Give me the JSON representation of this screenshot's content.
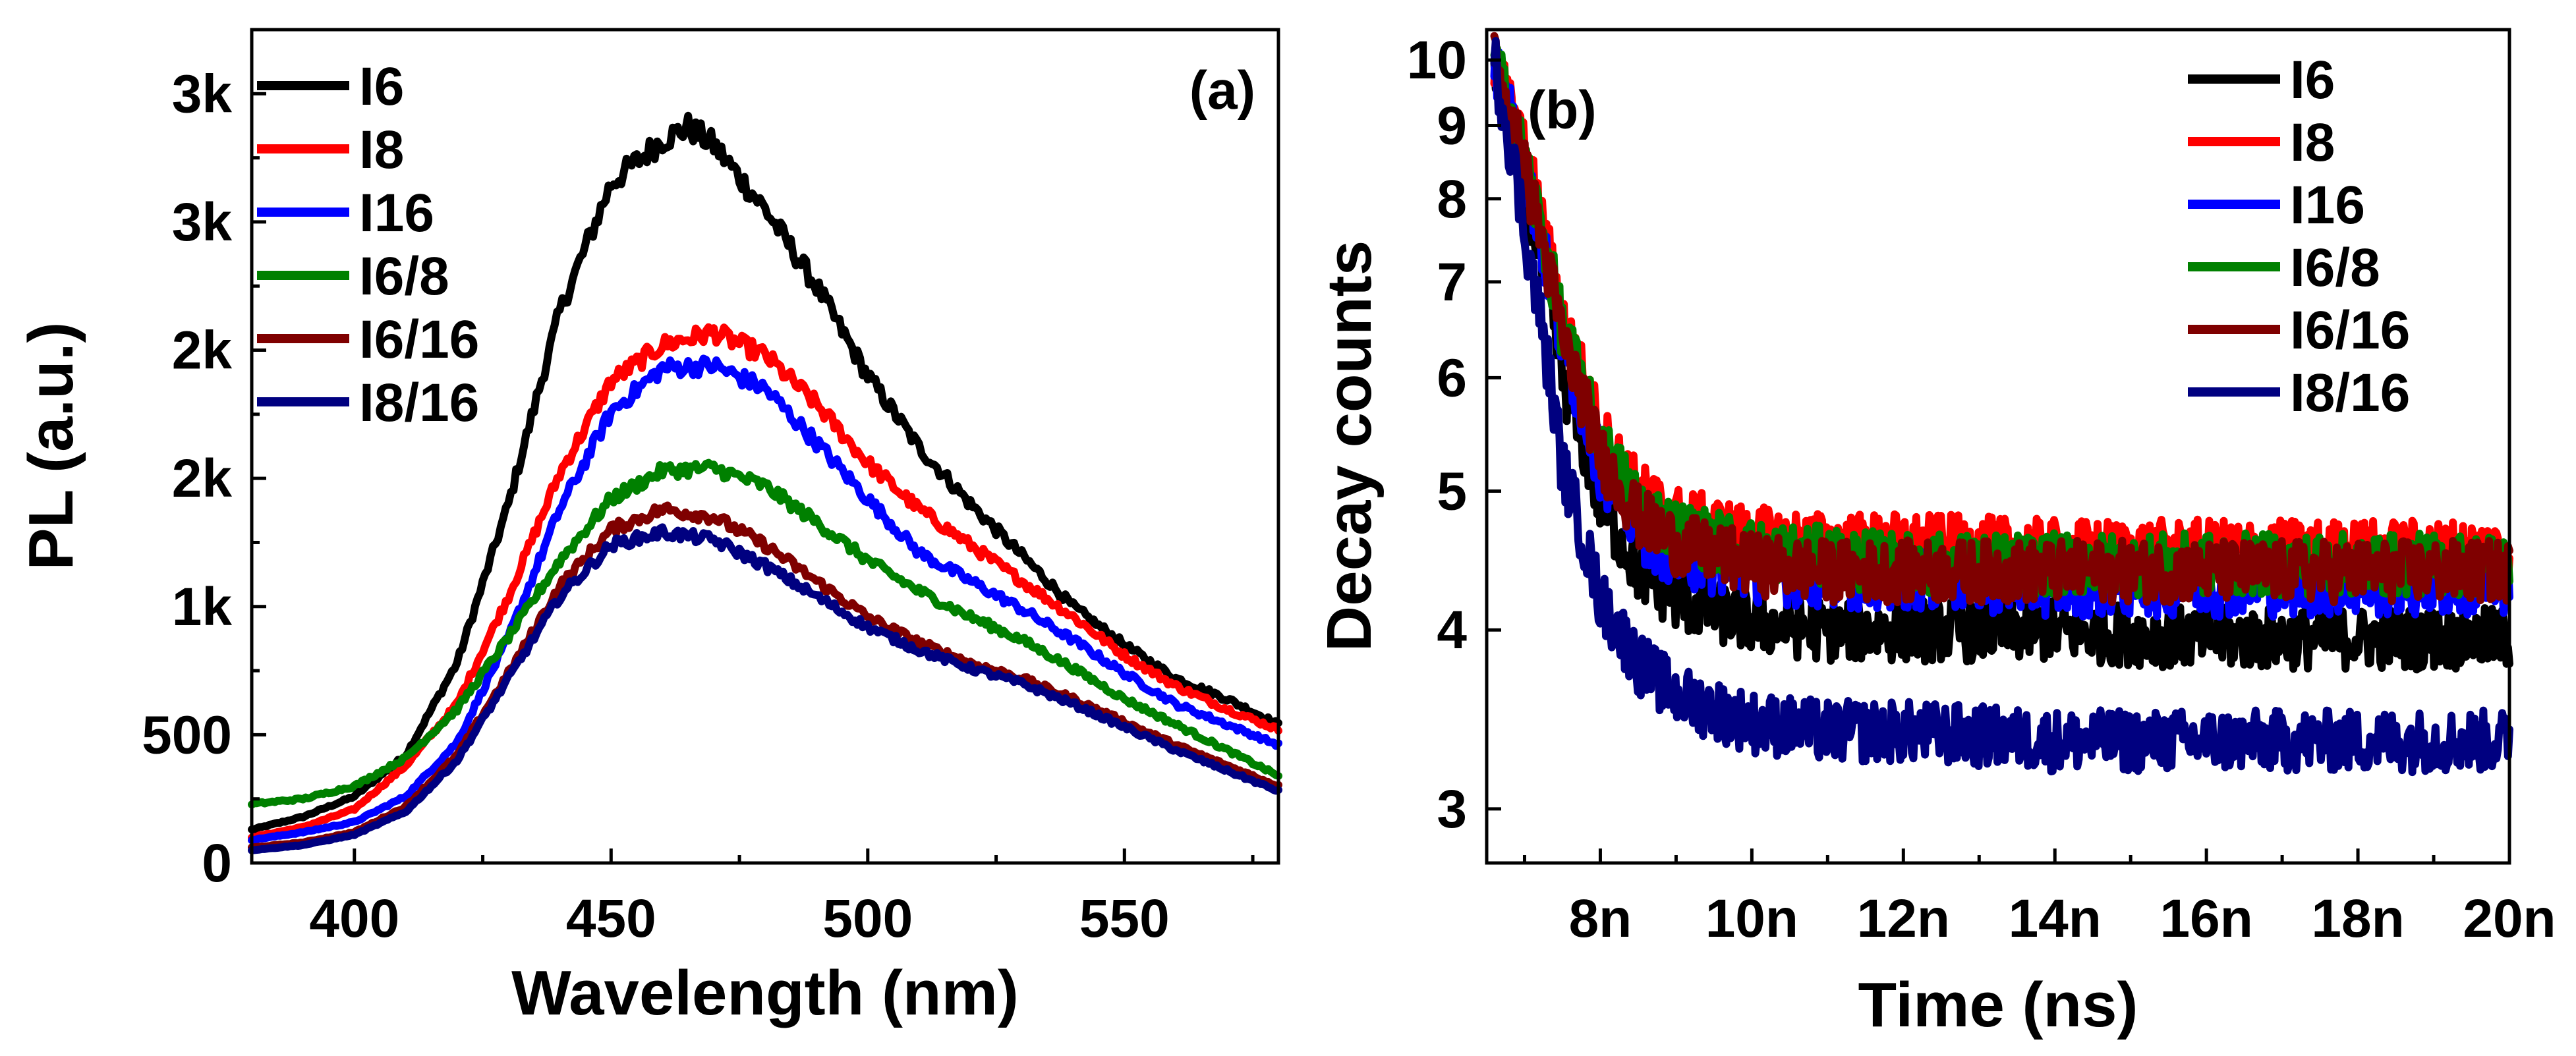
{
  "chart_data": [
    {
      "type": "line",
      "panel_label": "(a)",
      "xlabel": "Wavelength (nm)",
      "ylabel": "PL (a.u.)",
      "xlim": [
        380,
        580
      ],
      "ylim": [
        0,
        3250
      ],
      "x_ticks": [
        400,
        450,
        500,
        550
      ],
      "x_tick_labels": [
        "400",
        "450",
        "500",
        "550"
      ],
      "y_ticks": [
        0,
        500,
        1000,
        1500,
        2000,
        2500,
        3000
      ],
      "y_tick_labels": [
        "0",
        "500",
        "1k",
        "2k",
        "2k",
        "3k",
        "3k"
      ],
      "legend_position": "top-left",
      "series": [
        {
          "name": "I6",
          "color": "#000000",
          "x": [
            380,
            390,
            400,
            410,
            420,
            430,
            440,
            450,
            460,
            465,
            470,
            480,
            490,
            500,
            510,
            520,
            530,
            540,
            550,
            560,
            570,
            580
          ],
          "values": [
            130,
            180,
            260,
            420,
            780,
            1400,
            2150,
            2650,
            2820,
            2870,
            2800,
            2550,
            2250,
            1900,
            1620,
            1400,
            1200,
            1000,
            850,
            720,
            640,
            540
          ]
        },
        {
          "name": "I8",
          "color": "#ff0000",
          "x": [
            380,
            390,
            400,
            410,
            420,
            430,
            440,
            450,
            460,
            470,
            480,
            490,
            500,
            510,
            520,
            530,
            540,
            550,
            560,
            570,
            580
          ],
          "values": [
            100,
            140,
            210,
            380,
            620,
            1040,
            1520,
            1880,
            2020,
            2070,
            1980,
            1790,
            1560,
            1380,
            1240,
            1100,
            960,
            810,
            690,
            600,
            520
          ]
        },
        {
          "name": "I16",
          "color": "#0000ff",
          "x": [
            380,
            390,
            400,
            410,
            420,
            430,
            440,
            450,
            460,
            470,
            480,
            490,
            500,
            510,
            520,
            530,
            540,
            550,
            560,
            570,
            580
          ],
          "values": [
            90,
            120,
            160,
            260,
            470,
            880,
            1380,
            1760,
            1930,
            1940,
            1850,
            1640,
            1420,
            1210,
            1100,
            990,
            870,
            740,
            620,
            540,
            460
          ]
        },
        {
          "name": "I6/8",
          "color": "#008000",
          "x": [
            380,
            390,
            400,
            410,
            420,
            430,
            440,
            450,
            460,
            470,
            480,
            490,
            500,
            510,
            520,
            530,
            540,
            550,
            560,
            570,
            580
          ],
          "values": [
            230,
            250,
            300,
            410,
            600,
            880,
            1180,
            1420,
            1530,
            1540,
            1470,
            1330,
            1180,
            1060,
            960,
            870,
            760,
            640,
            540,
            440,
            340
          ]
        },
        {
          "name": "I6/16",
          "color": "#7f0000",
          "x": [
            380,
            390,
            400,
            410,
            420,
            430,
            440,
            450,
            460,
            470,
            480,
            490,
            500,
            510,
            520,
            530,
            540,
            550,
            560,
            570,
            580
          ],
          "values": [
            60,
            80,
            120,
            220,
            420,
            740,
            1080,
            1300,
            1380,
            1350,
            1240,
            1100,
            960,
            860,
            780,
            720,
            640,
            550,
            460,
            380,
            300
          ]
        },
        {
          "name": "I8/16",
          "color": "#000080",
          "x": [
            380,
            390,
            400,
            410,
            420,
            430,
            440,
            450,
            460,
            470,
            480,
            490,
            500,
            510,
            520,
            530,
            540,
            550,
            560,
            570,
            580
          ],
          "values": [
            50,
            70,
            110,
            200,
            400,
            720,
            1040,
            1240,
            1290,
            1260,
            1160,
            1040,
            920,
            830,
            760,
            700,
            620,
            530,
            440,
            360,
            280
          ]
        }
      ]
    },
    {
      "type": "line",
      "panel_label": "(b)",
      "xlabel": "Time (ns)",
      "ylabel": "Decay counts",
      "xlim": [
        6.5,
        20
      ],
      "ylim": [
        2.75,
        10.5
      ],
      "log_y": true,
      "x_ticks": [
        8,
        10,
        12,
        14,
        16,
        18,
        20
      ],
      "x_tick_labels": [
        "8n",
        "10n",
        "12n",
        "14n",
        "16n",
        "18n",
        "20n"
      ],
      "y_ticks": [
        3,
        4,
        5,
        6,
        7,
        8,
        9,
        10
      ],
      "y_tick_labels": [
        "3",
        "4",
        "5",
        "6",
        "7",
        "8",
        "9",
        "10"
      ],
      "legend_position": "top-right",
      "series": [
        {
          "name": "I6",
          "color": "#000000",
          "x": [
            6.6,
            7.0,
            7.5,
            8.0,
            8.5,
            9.0,
            10.0,
            11.0,
            12.0,
            14.0,
            16.0,
            18.0,
            20.0
          ],
          "values": [
            10,
            8.2,
            6.0,
            4.9,
            4.4,
            4.2,
            4.05,
            4.0,
            4.0,
            4.0,
            3.95,
            3.95,
            3.95
          ]
        },
        {
          "name": "I8",
          "color": "#ff0000",
          "x": [
            6.6,
            7.0,
            7.5,
            8.0,
            8.5,
            9.0,
            10.0,
            11.0,
            12.0,
            14.0,
            16.0,
            18.0,
            20.0
          ],
          "values": [
            10,
            8.6,
            6.6,
            5.5,
            5.0,
            4.8,
            4.65,
            4.6,
            4.6,
            4.55,
            4.55,
            4.55,
            4.55
          ]
        },
        {
          "name": "I16",
          "color": "#0000ff",
          "x": [
            6.6,
            7.0,
            7.5,
            8.0,
            8.5,
            9.0,
            10.0,
            11.0,
            12.0,
            14.0,
            16.0,
            18.0,
            20.0
          ],
          "values": [
            10,
            8.4,
            6.3,
            5.2,
            4.7,
            4.5,
            4.4,
            4.35,
            4.35,
            4.3,
            4.3,
            4.3,
            4.3
          ]
        },
        {
          "name": "I6/8",
          "color": "#008000",
          "x": [
            6.6,
            7.0,
            7.5,
            8.0,
            8.5,
            9.0,
            10.0,
            11.0,
            12.0,
            14.0,
            16.0,
            18.0,
            20.0
          ],
          "values": [
            10,
            8.5,
            6.5,
            5.4,
            4.9,
            4.7,
            4.55,
            4.5,
            4.45,
            4.45,
            4.45,
            4.45,
            4.45
          ]
        },
        {
          "name": "I6/16",
          "color": "#7f0000",
          "x": [
            6.6,
            7.0,
            7.5,
            8.0,
            8.5,
            9.0,
            10.0,
            11.0,
            12.0,
            14.0,
            16.0,
            18.0,
            20.0
          ],
          "values": [
            10,
            8.4,
            6.4,
            5.3,
            4.8,
            4.6,
            4.45,
            4.4,
            4.4,
            4.4,
            4.4,
            4.4,
            4.4
          ]
        },
        {
          "name": "I8/16",
          "color": "#000080",
          "x": [
            6.6,
            7.0,
            7.5,
            8.0,
            8.5,
            9.0,
            10.0,
            11.0,
            12.0,
            14.0,
            16.0,
            18.0,
            20.0
          ],
          "values": [
            10,
            7.6,
            5.2,
            4.2,
            3.8,
            3.6,
            3.45,
            3.4,
            3.4,
            3.35,
            3.35,
            3.35,
            3.35
          ]
        }
      ]
    }
  ]
}
